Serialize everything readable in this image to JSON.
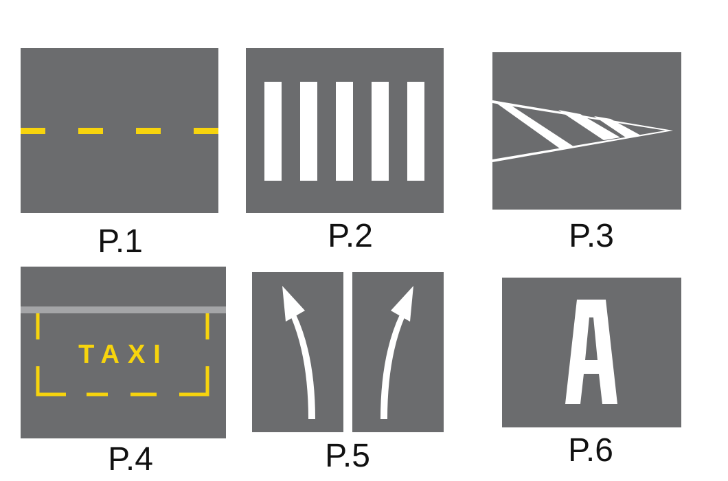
{
  "labels": {
    "p1": "P.1",
    "p2": "P.2",
    "p3": "P.3",
    "p4": "P.4",
    "p5": "P.5",
    "p6": "P.6"
  },
  "p4_text": "TAXI",
  "p6_letter": "A",
  "colors": {
    "asphalt": "#6b6c6e",
    "yellow": "#f7d40d",
    "white": "#ffffff",
    "gray_line": "#a4a5a7",
    "label": "#111111"
  }
}
